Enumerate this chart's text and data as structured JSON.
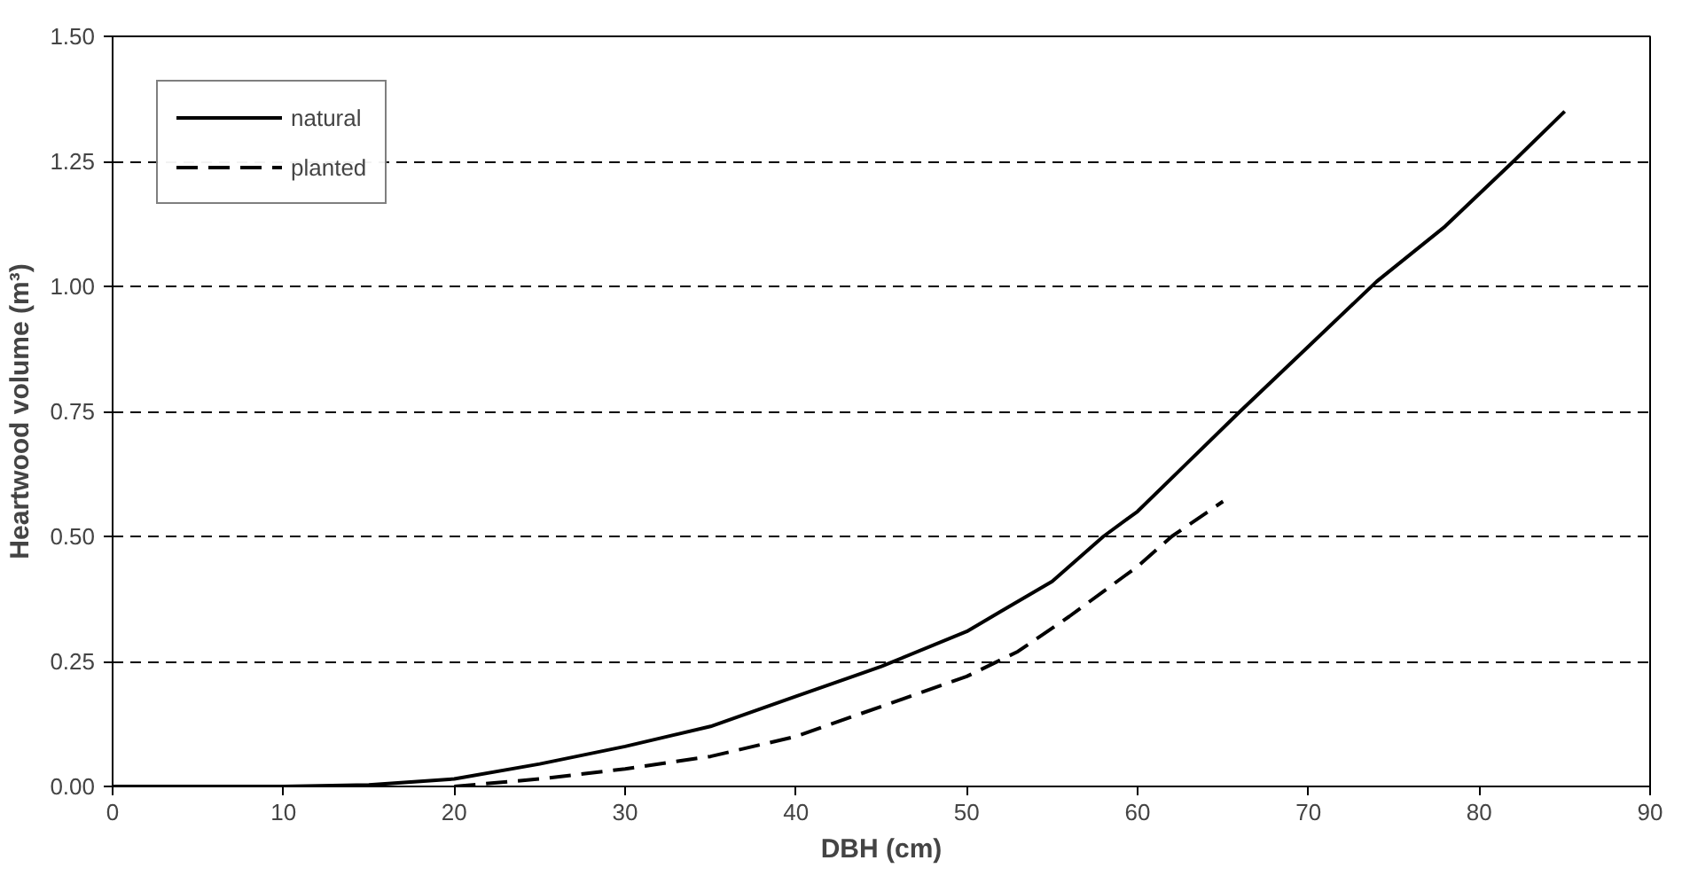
{
  "chart_data": {
    "type": "line",
    "xlabel": "DBH (cm)",
    "ylabel": "Heartwood volume (m³)",
    "xlim": [
      0,
      90
    ],
    "xticks": [
      0,
      10,
      20,
      30,
      40,
      50,
      60,
      70,
      80,
      90
    ],
    "ylim": [
      0,
      1.5
    ],
    "yticks": [
      {
        "value": 0,
        "label": "0.00"
      },
      {
        "value": 0.25,
        "label": "0.25"
      },
      {
        "value": 0.5,
        "label": "0.50"
      },
      {
        "value": 0.75,
        "label": "0.75"
      },
      {
        "value": 1,
        "label": "1.00"
      },
      {
        "value": 1.25,
        "label": "1.25"
      },
      {
        "value": 1.5,
        "label": "1.50"
      }
    ],
    "grid": "y",
    "legend": "top left",
    "marker": "none",
    "series": [
      {
        "name": "natural",
        "color": "#000000",
        "line_style": "solid",
        "x": [
          0,
          10,
          15,
          20,
          25,
          30,
          35,
          40,
          45,
          50,
          52,
          55,
          58,
          60,
          63,
          66,
          70,
          74,
          78,
          82,
          85
        ],
        "values": [
          0,
          0,
          0.003,
          0.015,
          0.045,
          0.08,
          0.12,
          0.18,
          0.24,
          0.31,
          0.35,
          0.41,
          0.5,
          0.55,
          0.65,
          0.75,
          0.88,
          1.01,
          1.12,
          1.25,
          1.35
        ]
      },
      {
        "name": "planted",
        "color": "#000000",
        "line_style": "dashed",
        "x": [
          20,
          25,
          30,
          35,
          40,
          45,
          50,
          53,
          56,
          60,
          62,
          65
        ],
        "values": [
          0,
          0.015,
          0.035,
          0.06,
          0.1,
          0.16,
          0.22,
          0.27,
          0.34,
          0.44,
          0.5,
          0.57
        ]
      }
    ]
  }
}
